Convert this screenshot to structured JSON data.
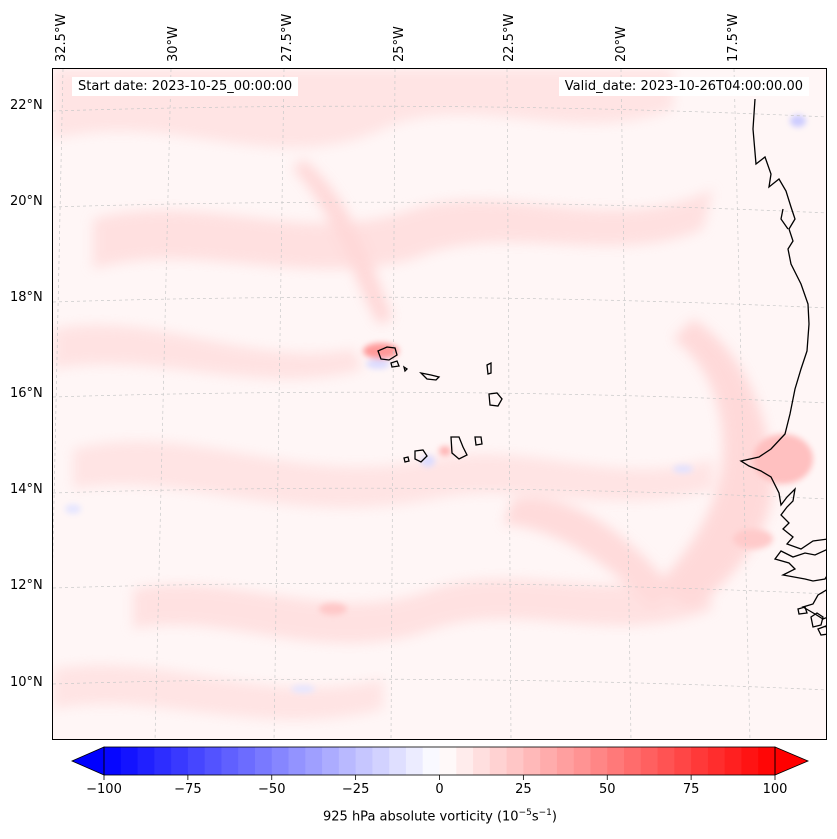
{
  "map": {
    "longitude_labels": [
      "32.5°W",
      "30°W",
      "27.5°W",
      "25°W",
      "22.5°W",
      "20°W",
      "17.5°W"
    ],
    "latitude_labels": [
      "22°N",
      "20°N",
      "18°N",
      "16°N",
      "14°N",
      "12°N",
      "10°N"
    ],
    "start_date": "Start date: 2023-10-25_00:00:00",
    "valid_date": "Valid_date: 2023-10-26T04:00:00.00",
    "field": "925 hPa absolute vorticity",
    "colors": {
      "background_tint": "#fff6f6",
      "positive_anomaly": "#ffd6d6",
      "strong_positive": "#ff8a8a",
      "negative_anomaly": "#e6e6ff",
      "coastline": "#000000",
      "gridline": "#bbbbbb"
    }
  },
  "colorbar": {
    "ticks": [
      "−100",
      "−75",
      "−50",
      "−25",
      "0",
      "25",
      "50",
      "75",
      "100"
    ],
    "label_prefix": "925 hPa absolute vorticity (10",
    "exp1": "−5",
    "label_mid": "s",
    "exp2": "−1",
    "label_suffix": ")",
    "min_color": "#0000ff",
    "mid_color": "#ffffff",
    "max_color": "#ff0000"
  }
}
